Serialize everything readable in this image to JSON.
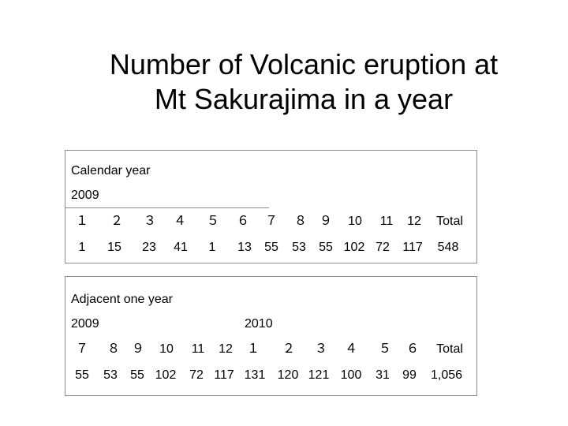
{
  "title": {
    "line1": "Number of Volcanic eruption at",
    "line2": "Mt Sakurajima in a year"
  },
  "calendar_year": {
    "heading": "Calendar year",
    "year": "2009",
    "months": [
      "１",
      "２",
      "３",
      "４",
      "５",
      "６",
      "７",
      "８",
      "９",
      "10",
      "11",
      "12",
      "Total"
    ],
    "counts": [
      "1",
      "15",
      "23",
      "41",
      "1",
      "13",
      "55",
      "53",
      "55",
      "102",
      "72",
      "117",
      "548"
    ]
  },
  "adjacent_year": {
    "heading": "Adjacent one year",
    "year_start": "2009",
    "year_end": "2010",
    "months": [
      "７",
      "８",
      "９",
      "10",
      "11",
      "12",
      "１",
      "２",
      "３",
      "４",
      "５",
      "６",
      "Total"
    ],
    "counts": [
      "55",
      "53",
      "55",
      "102",
      "72",
      "117",
      "131",
      "120",
      "121",
      "100",
      "31",
      "99",
      "1,056"
    ]
  }
}
